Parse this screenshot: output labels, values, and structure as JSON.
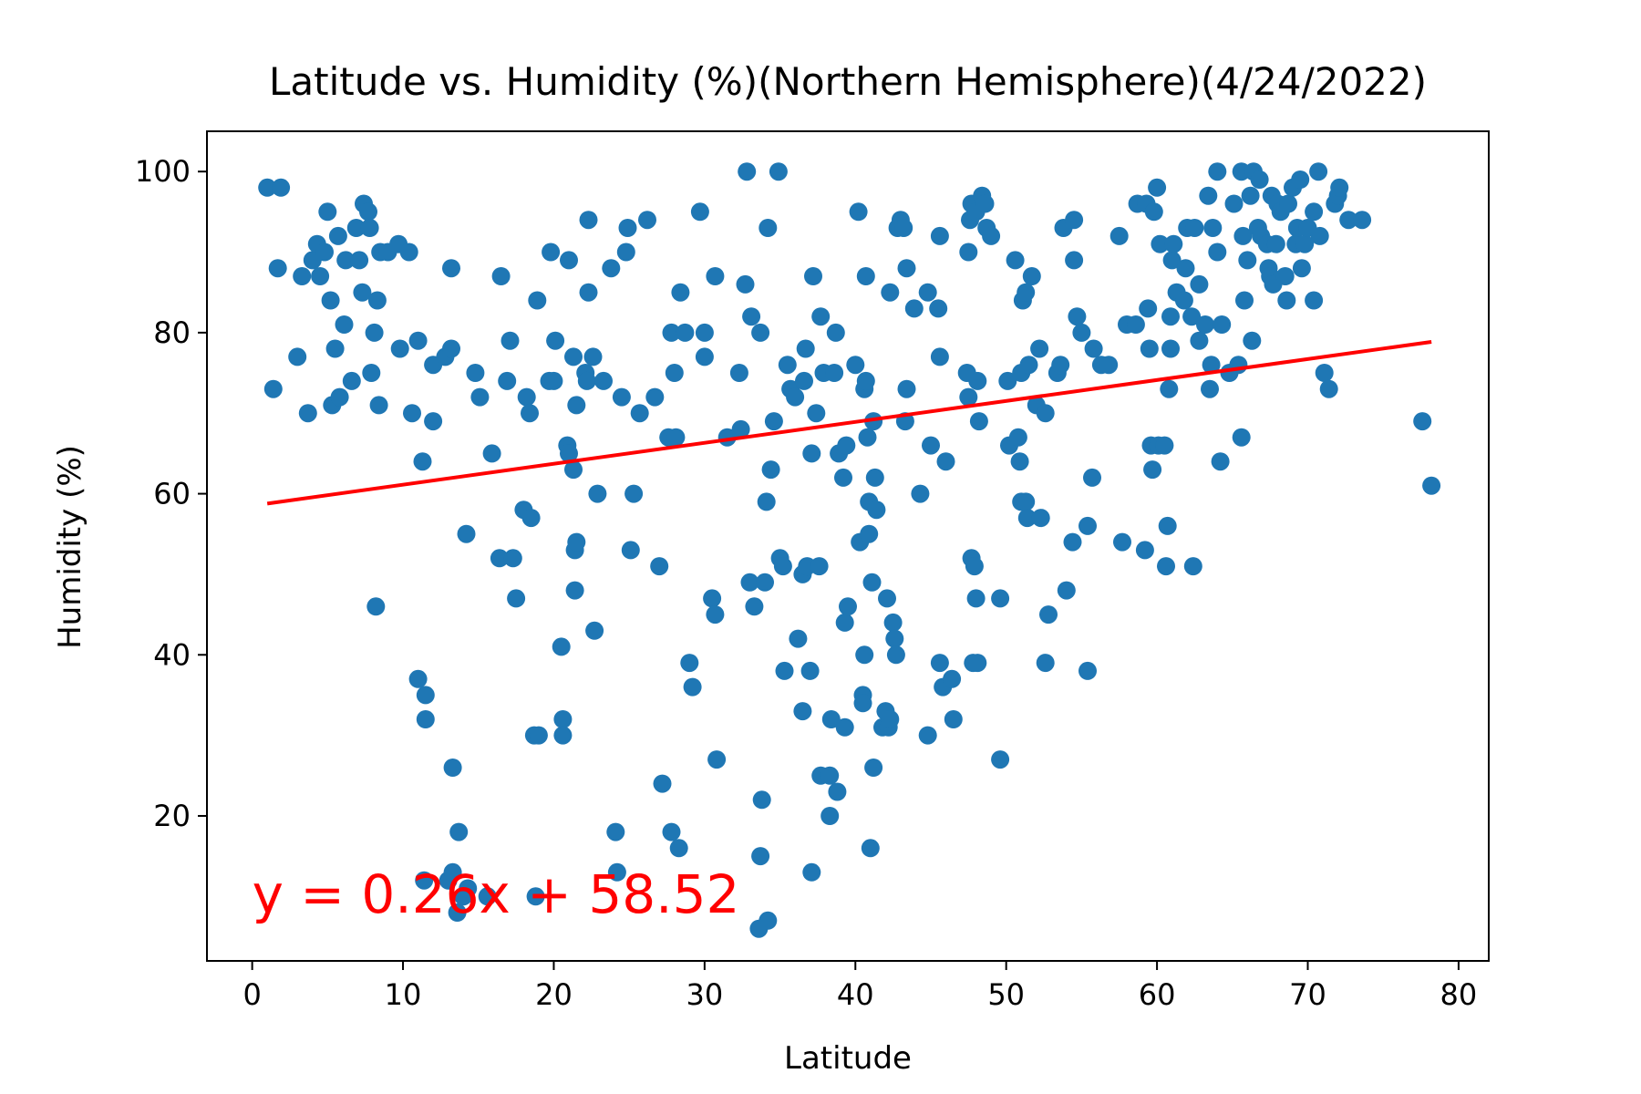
{
  "chart_data": {
    "type": "scatter",
    "title": "Latitude vs. Humidity (%)(Northern Hemisphere)(4/24/2022)",
    "xlabel": "Latitude",
    "ylabel": "Humidity (%)",
    "xlim": [
      -3,
      82
    ],
    "ylim": [
      2,
      105
    ],
    "xticks": [
      0,
      10,
      20,
      30,
      40,
      50,
      60,
      70,
      80
    ],
    "yticks": [
      20,
      40,
      60,
      80,
      100
    ],
    "grid": false,
    "legend": "none",
    "marker_color": "#1f77b4",
    "regression": {
      "slope": 0.26,
      "intercept": 58.52,
      "x_range": [
        1,
        78.2
      ],
      "color": "#ff0000",
      "equation_label": "y = 0.26x + 58.52",
      "label_position": [
        0,
        8
      ]
    },
    "points": [
      [
        1,
        98
      ],
      [
        1.4,
        73
      ],
      [
        1.7,
        88
      ],
      [
        1.9,
        98
      ],
      [
        3,
        77
      ],
      [
        3.3,
        87
      ],
      [
        3.7,
        70
      ],
      [
        4,
        89
      ],
      [
        4.3,
        91
      ],
      [
        4.5,
        87
      ],
      [
        4.8,
        90
      ],
      [
        5,
        95
      ],
      [
        5.2,
        84
      ],
      [
        5.3,
        71
      ],
      [
        5.5,
        78
      ],
      [
        5.7,
        92
      ],
      [
        5.8,
        72
      ],
      [
        6.1,
        81
      ],
      [
        6.2,
        89
      ],
      [
        6.6,
        74
      ],
      [
        6.9,
        93
      ],
      [
        7.1,
        89
      ],
      [
        7.3,
        85
      ],
      [
        7.4,
        96
      ],
      [
        7.7,
        95
      ],
      [
        7.8,
        93
      ],
      [
        7.9,
        75
      ],
      [
        8.1,
        80
      ],
      [
        8.2,
        46
      ],
      [
        8.3,
        84
      ],
      [
        8.4,
        71
      ],
      [
        8.5,
        90
      ],
      [
        9,
        90
      ],
      [
        9.8,
        78
      ],
      [
        9.7,
        91
      ],
      [
        10.4,
        90
      ],
      [
        10.6,
        70
      ],
      [
        11,
        37
      ],
      [
        11,
        79
      ],
      [
        11.3,
        64
      ],
      [
        11.4,
        12
      ],
      [
        11.5,
        35
      ],
      [
        11.5,
        32
      ],
      [
        12,
        69
      ],
      [
        12,
        76
      ],
      [
        12.8,
        77
      ],
      [
        13,
        12
      ],
      [
        13.2,
        78
      ],
      [
        13.2,
        88
      ],
      [
        13.3,
        13
      ],
      [
        13.3,
        26
      ],
      [
        13.6,
        8
      ],
      [
        13.7,
        18
      ],
      [
        14,
        10
      ],
      [
        14.2,
        55
      ],
      [
        14.3,
        11
      ],
      [
        14.8,
        75
      ],
      [
        15.1,
        72
      ],
      [
        15.6,
        10
      ],
      [
        15.9,
        65
      ],
      [
        16.4,
        52
      ],
      [
        16.5,
        87
      ],
      [
        16.9,
        74
      ],
      [
        17.1,
        79
      ],
      [
        17.3,
        52
      ],
      [
        17.5,
        47
      ],
      [
        18,
        58
      ],
      [
        18.2,
        72
      ],
      [
        18.4,
        70
      ],
      [
        18.5,
        57
      ],
      [
        18.7,
        30
      ],
      [
        18.8,
        10
      ],
      [
        18.9,
        84
      ],
      [
        19,
        30
      ],
      [
        19.7,
        74
      ],
      [
        19.8,
        90
      ],
      [
        20,
        74
      ],
      [
        20.1,
        79
      ],
      [
        20.5,
        41
      ],
      [
        20.6,
        32
      ],
      [
        20.6,
        30
      ],
      [
        20.9,
        66
      ],
      [
        21,
        65
      ],
      [
        21,
        89
      ],
      [
        21.3,
        77
      ],
      [
        21.3,
        63
      ],
      [
        21.4,
        48
      ],
      [
        21.4,
        53
      ],
      [
        21.5,
        54
      ],
      [
        21.5,
        71
      ],
      [
        22.1,
        75
      ],
      [
        22.2,
        74
      ],
      [
        22.3,
        85
      ],
      [
        22.3,
        94
      ],
      [
        22.6,
        77
      ],
      [
        22.7,
        43
      ],
      [
        22.9,
        60
      ],
      [
        23.3,
        74
      ],
      [
        23.8,
        88
      ],
      [
        24.1,
        18
      ],
      [
        24.2,
        13
      ],
      [
        24.5,
        72
      ],
      [
        24.8,
        90
      ],
      [
        24.9,
        93
      ],
      [
        25.1,
        53
      ],
      [
        25.3,
        60
      ],
      [
        25.7,
        70
      ],
      [
        26.2,
        94
      ],
      [
        26.7,
        72
      ],
      [
        27,
        51
      ],
      [
        27.2,
        24
      ],
      [
        27.6,
        67
      ],
      [
        27.8,
        18
      ],
      [
        27.8,
        80
      ],
      [
        28,
        75
      ],
      [
        28.1,
        67
      ],
      [
        28.3,
        16
      ],
      [
        28.4,
        85
      ],
      [
        28.7,
        80
      ],
      [
        29,
        39
      ],
      [
        29.2,
        36
      ],
      [
        29.7,
        95
      ],
      [
        30,
        77
      ],
      [
        30,
        80
      ],
      [
        30.5,
        47
      ],
      [
        30.7,
        87
      ],
      [
        30.7,
        45
      ],
      [
        30.8,
        27
      ],
      [
        31.5,
        67
      ],
      [
        32.3,
        75
      ],
      [
        32.4,
        68
      ],
      [
        32.7,
        86
      ],
      [
        32.8,
        100
      ],
      [
        33,
        49
      ],
      [
        33.1,
        82
      ],
      [
        33.3,
        46
      ],
      [
        33.6,
        6
      ],
      [
        33.7,
        15
      ],
      [
        33.7,
        80
      ],
      [
        33.8,
        22
      ],
      [
        34,
        49
      ],
      [
        34.1,
        59
      ],
      [
        34.2,
        93
      ],
      [
        34.2,
        7
      ],
      [
        34.4,
        63
      ],
      [
        34.6,
        69
      ],
      [
        34.9,
        100
      ],
      [
        35,
        52
      ],
      [
        35.2,
        51
      ],
      [
        35.3,
        38
      ],
      [
        35.5,
        76
      ],
      [
        35.7,
        73
      ],
      [
        36,
        72
      ],
      [
        36.2,
        42
      ],
      [
        36.5,
        33
      ],
      [
        36.5,
        50
      ],
      [
        36.6,
        74
      ],
      [
        36.7,
        78
      ],
      [
        36.8,
        51
      ],
      [
        37,
        38
      ],
      [
        37.1,
        13
      ],
      [
        37.1,
        65
      ],
      [
        37.2,
        87
      ],
      [
        37.4,
        70
      ],
      [
        37.6,
        51
      ],
      [
        37.7,
        82
      ],
      [
        37.7,
        25
      ],
      [
        37.9,
        75
      ],
      [
        38.3,
        25
      ],
      [
        38.3,
        20
      ],
      [
        38.4,
        32
      ],
      [
        38.6,
        75
      ],
      [
        38.7,
        80
      ],
      [
        38.8,
        23
      ],
      [
        38.9,
        65
      ],
      [
        39.2,
        62
      ],
      [
        39.3,
        31
      ],
      [
        39.3,
        44
      ],
      [
        39.4,
        66
      ],
      [
        39.5,
        46
      ],
      [
        40,
        76
      ],
      [
        40.2,
        95
      ],
      [
        40.3,
        54
      ],
      [
        40.5,
        35
      ],
      [
        40.5,
        34
      ],
      [
        40.6,
        73
      ],
      [
        40.6,
        40
      ],
      [
        40.7,
        87
      ],
      [
        40.7,
        74
      ],
      [
        40.8,
        67
      ],
      [
        40.9,
        59
      ],
      [
        40.9,
        55
      ],
      [
        41,
        16
      ],
      [
        41.1,
        49
      ],
      [
        41.2,
        26
      ],
      [
        41.2,
        69
      ],
      [
        41.3,
        62
      ],
      [
        41.4,
        58
      ],
      [
        41.8,
        31
      ],
      [
        42,
        33
      ],
      [
        42.1,
        47
      ],
      [
        42.2,
        31
      ],
      [
        42.3,
        32
      ],
      [
        42.3,
        85
      ],
      [
        42.5,
        44
      ],
      [
        42.6,
        42
      ],
      [
        42.7,
        40
      ],
      [
        42.8,
        93
      ],
      [
        43,
        94
      ],
      [
        43.2,
        93
      ],
      [
        43.3,
        69
      ],
      [
        43.4,
        73
      ],
      [
        43.4,
        88
      ],
      [
        43.9,
        83
      ],
      [
        44.3,
        60
      ],
      [
        44.8,
        85
      ],
      [
        44.8,
        30
      ],
      [
        45,
        66
      ],
      [
        45.5,
        83
      ],
      [
        45.6,
        39
      ],
      [
        45.6,
        77
      ],
      [
        45.6,
        92
      ],
      [
        45.8,
        36
      ],
      [
        46,
        64
      ],
      [
        46.4,
        37
      ],
      [
        46.5,
        32
      ],
      [
        47.4,
        75
      ],
      [
        47.5,
        90
      ],
      [
        47.5,
        72
      ],
      [
        47.6,
        94
      ],
      [
        47.7,
        96
      ],
      [
        47.7,
        52
      ],
      [
        47.8,
        39
      ],
      [
        47.9,
        51
      ],
      [
        48,
        47
      ],
      [
        48,
        95
      ],
      [
        48.1,
        74
      ],
      [
        48.1,
        39
      ],
      [
        48.2,
        69
      ],
      [
        48.4,
        97
      ],
      [
        48.6,
        96
      ],
      [
        48.7,
        93
      ],
      [
        49,
        92
      ],
      [
        49.6,
        47
      ],
      [
        49.6,
        27
      ],
      [
        50.1,
        74
      ],
      [
        50.2,
        66
      ],
      [
        50.6,
        89
      ],
      [
        50.8,
        67
      ],
      [
        50.9,
        64
      ],
      [
        51,
        59
      ],
      [
        51,
        75
      ],
      [
        51.1,
        84
      ],
      [
        51.3,
        59
      ],
      [
        51.3,
        85
      ],
      [
        51.4,
        57
      ],
      [
        51.5,
        76
      ],
      [
        51.7,
        87
      ],
      [
        52,
        71
      ],
      [
        52.2,
        78
      ],
      [
        52.3,
        57
      ],
      [
        52.6,
        70
      ],
      [
        52.6,
        39
      ],
      [
        52.8,
        45
      ],
      [
        53.4,
        75
      ],
      [
        53.6,
        76
      ],
      [
        53.8,
        93
      ],
      [
        54,
        48
      ],
      [
        54.4,
        54
      ],
      [
        54.5,
        94
      ],
      [
        54.5,
        89
      ],
      [
        54.7,
        82
      ],
      [
        55,
        80
      ],
      [
        55.4,
        56
      ],
      [
        55.4,
        38
      ],
      [
        55.7,
        62
      ],
      [
        55.8,
        78
      ],
      [
        56.3,
        76
      ],
      [
        56.8,
        76
      ],
      [
        57.5,
        92
      ],
      [
        57.7,
        54
      ],
      [
        58,
        81
      ],
      [
        58.6,
        81
      ],
      [
        58.7,
        96
      ],
      [
        59.2,
        53
      ],
      [
        59.3,
        96
      ],
      [
        59.4,
        83
      ],
      [
        59.5,
        78
      ],
      [
        59.6,
        66
      ],
      [
        59.7,
        63
      ],
      [
        59.8,
        95
      ],
      [
        60,
        98
      ],
      [
        60.1,
        66
      ],
      [
        60.2,
        91
      ],
      [
        60.5,
        66
      ],
      [
        60.6,
        51
      ],
      [
        60.7,
        56
      ],
      [
        60.8,
        73
      ],
      [
        60.9,
        82
      ],
      [
        60.9,
        78
      ],
      [
        61,
        89
      ],
      [
        61.1,
        91
      ],
      [
        61.3,
        85
      ],
      [
        61.8,
        84
      ],
      [
        61.9,
        88
      ],
      [
        62,
        93
      ],
      [
        62.3,
        82
      ],
      [
        62.4,
        51
      ],
      [
        62.5,
        93
      ],
      [
        62.8,
        86
      ],
      [
        62.8,
        79
      ],
      [
        63.2,
        81
      ],
      [
        63.4,
        97
      ],
      [
        63.5,
        73
      ],
      [
        63.6,
        76
      ],
      [
        63.7,
        93
      ],
      [
        64,
        90
      ],
      [
        64,
        100
      ],
      [
        64.2,
        64
      ],
      [
        64.3,
        81
      ],
      [
        64.8,
        75
      ],
      [
        65.1,
        96
      ],
      [
        65.4,
        76
      ],
      [
        65.6,
        67
      ],
      [
        65.6,
        100
      ],
      [
        65.7,
        92
      ],
      [
        65.8,
        84
      ],
      [
        66,
        89
      ],
      [
        66.2,
        97
      ],
      [
        66.3,
        79
      ],
      [
        66.4,
        100
      ],
      [
        66.7,
        93
      ],
      [
        66.8,
        99
      ],
      [
        66.9,
        92
      ],
      [
        67.3,
        91
      ],
      [
        67.4,
        88
      ],
      [
        67.5,
        87
      ],
      [
        67.6,
        97
      ],
      [
        67.7,
        86
      ],
      [
        67.9,
        91
      ],
      [
        68,
        96
      ],
      [
        68.2,
        95
      ],
      [
        68.5,
        87
      ],
      [
        68.6,
        84
      ],
      [
        68.7,
        96
      ],
      [
        69,
        98
      ],
      [
        69.2,
        91
      ],
      [
        69.3,
        93
      ],
      [
        69.5,
        99
      ],
      [
        69.6,
        88
      ],
      [
        69.8,
        91
      ],
      [
        70,
        93
      ],
      [
        70.4,
        84
      ],
      [
        70.4,
        95
      ],
      [
        70.7,
        100
      ],
      [
        70.8,
        92
      ],
      [
        71.1,
        75
      ],
      [
        71.4,
        73
      ],
      [
        71.8,
        96
      ],
      [
        72,
        97
      ],
      [
        72.1,
        98
      ],
      [
        72.7,
        94
      ],
      [
        73.6,
        94
      ],
      [
        77.6,
        69
      ],
      [
        78.2,
        61
      ]
    ]
  }
}
